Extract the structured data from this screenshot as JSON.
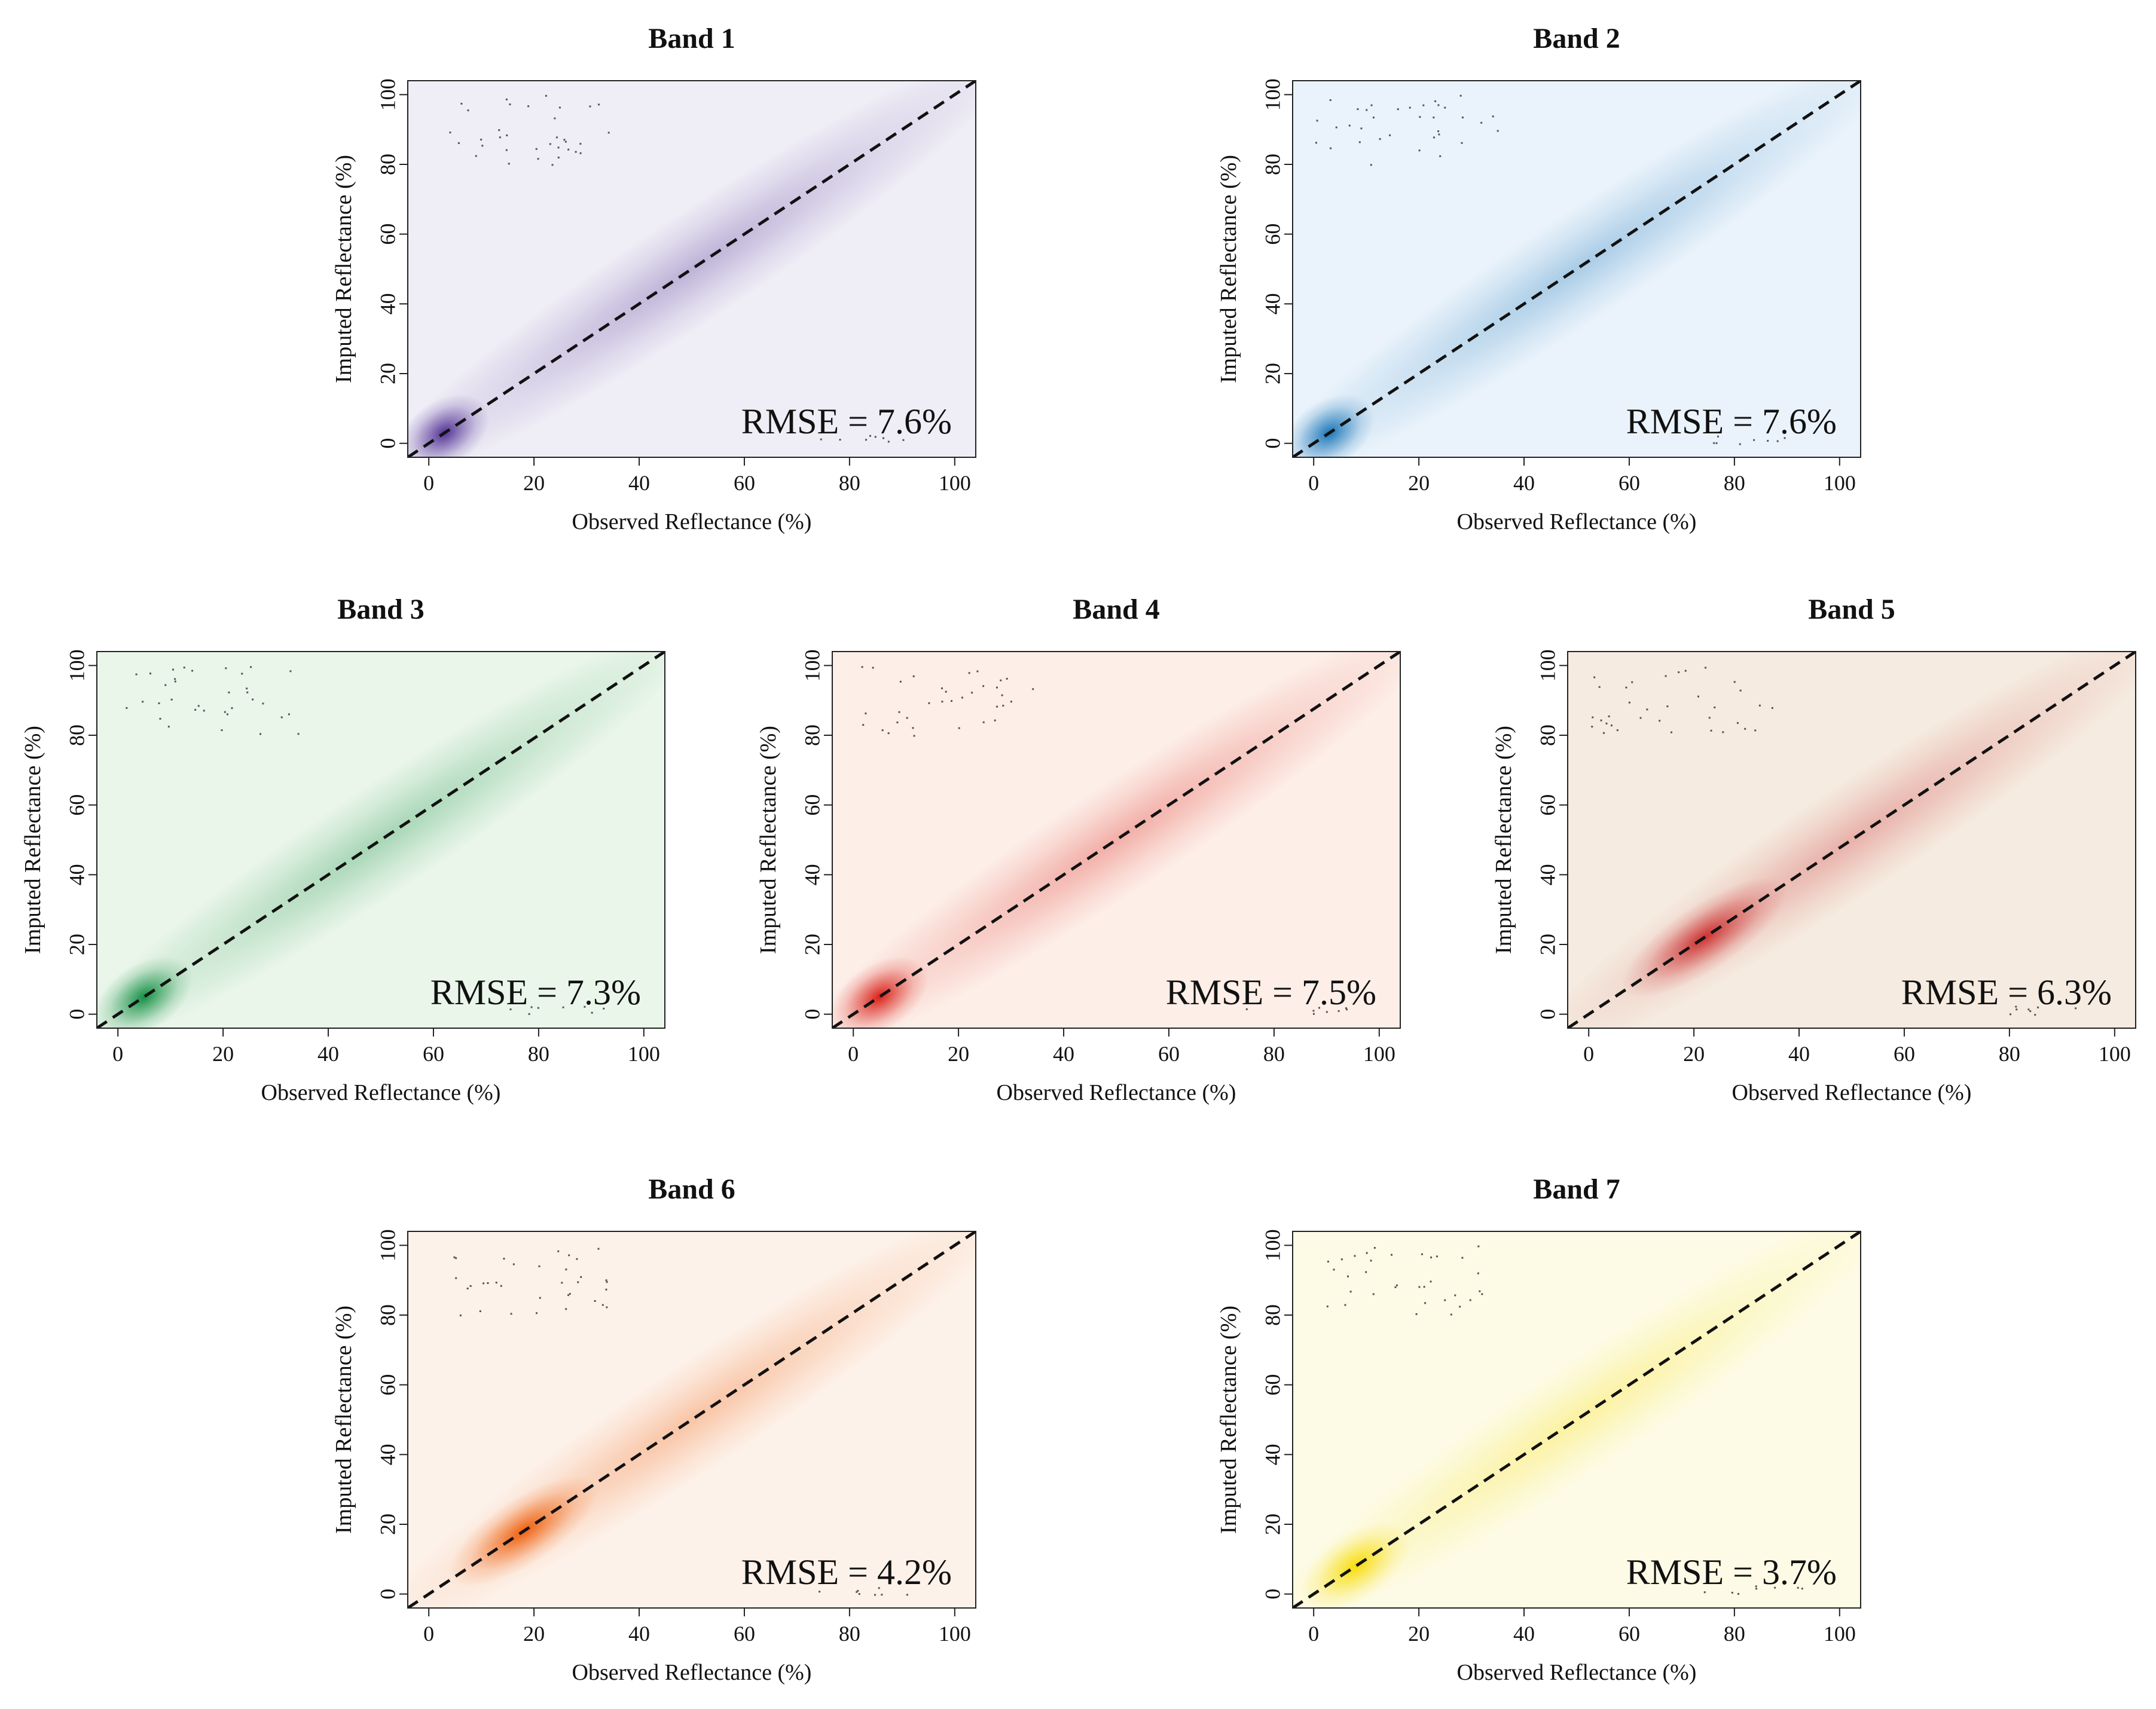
{
  "figure": {
    "x_axis_label": "Observed Reflectance (%)",
    "y_axis_label": "Imputed Reflectance (%)",
    "x_ticks": [
      0,
      20,
      40,
      60,
      80,
      100
    ],
    "y_ticks": [
      0,
      20,
      40,
      60,
      80,
      100
    ]
  },
  "chart_data": [
    {
      "type": "heatmap",
      "title": "Band 1",
      "rmse_label": "RMSE = 7.6%",
      "rmse_percent": 7.6,
      "color": "#4b2a91",
      "tint": "#efedf6",
      "xlabel": "Observed Reflectance (%)",
      "ylabel": "Imputed Reflectance (%)",
      "xlim": [
        -4,
        104
      ],
      "ylim": [
        -4,
        104
      ],
      "reference_line": "1:1",
      "density_peak": {
        "x": 3,
        "y": 3
      }
    },
    {
      "type": "heatmap",
      "title": "Band 2",
      "rmse_label": "RMSE = 7.6%",
      "rmse_percent": 7.6,
      "color": "#1170b5",
      "tint": "#eaf3fb",
      "xlabel": "Observed Reflectance (%)",
      "ylabel": "Imputed Reflectance (%)",
      "xlim": [
        -4,
        104
      ],
      "ylim": [
        -4,
        104
      ],
      "reference_line": "1:1",
      "density_peak": {
        "x": 3,
        "y": 3
      }
    },
    {
      "type": "heatmap",
      "title": "Band 3",
      "rmse_label": "RMSE = 7.3%",
      "rmse_percent": 7.3,
      "color": "#0b8a3c",
      "tint": "#eaf6ea",
      "xlabel": "Observed Reflectance (%)",
      "ylabel": "Imputed Reflectance (%)",
      "xlim": [
        -4,
        104
      ],
      "ylim": [
        -4,
        104
      ],
      "reference_line": "1:1",
      "density_peak": {
        "x": 5,
        "y": 5
      }
    },
    {
      "type": "heatmap",
      "title": "Band 4",
      "rmse_label": "RMSE = 7.5%",
      "rmse_percent": 7.5,
      "color": "#d7190f",
      "tint": "#fdeee8",
      "xlabel": "Observed Reflectance (%)",
      "ylabel": "Imputed Reflectance (%)",
      "xlim": [
        -4,
        104
      ],
      "ylim": [
        -4,
        104
      ],
      "reference_line": "1:1",
      "density_peak": {
        "x": 5,
        "y": 5
      }
    },
    {
      "type": "heatmap",
      "title": "Band 5",
      "rmse_label": "RMSE = 6.3%",
      "rmse_percent": 6.3,
      "color": "#c92a2a",
      "tint": "#f5ebe0",
      "xlabel": "Observed Reflectance (%)",
      "ylabel": "Imputed Reflectance (%)",
      "xlim": [
        -4,
        104
      ],
      "ylim": [
        -4,
        104
      ],
      "reference_line": "1:1",
      "density_peak": {
        "x": 22,
        "y": 22
      }
    },
    {
      "type": "heatmap",
      "title": "Band 6",
      "rmse_label": "RMSE = 4.2%",
      "rmse_percent": 4.2,
      "color": "#ee5a05",
      "tint": "#fdf2ea",
      "xlabel": "Observed Reflectance (%)",
      "ylabel": "Imputed Reflectance (%)",
      "xlim": [
        -4,
        104
      ],
      "ylim": [
        -4,
        104
      ],
      "reference_line": "1:1",
      "density_peak": {
        "x": 18,
        "y": 18
      }
    },
    {
      "type": "heatmap",
      "title": "Band 7",
      "rmse_label": "RMSE = 3.7%",
      "rmse_percent": 3.7,
      "color": "#f7dc00",
      "tint": "#fdfbe6",
      "xlabel": "Observed Reflectance (%)",
      "ylabel": "Imputed Reflectance (%)",
      "xlim": [
        -4,
        104
      ],
      "ylim": [
        -4,
        104
      ],
      "reference_line": "1:1",
      "density_peak": {
        "x": 8,
        "y": 8
      }
    }
  ]
}
